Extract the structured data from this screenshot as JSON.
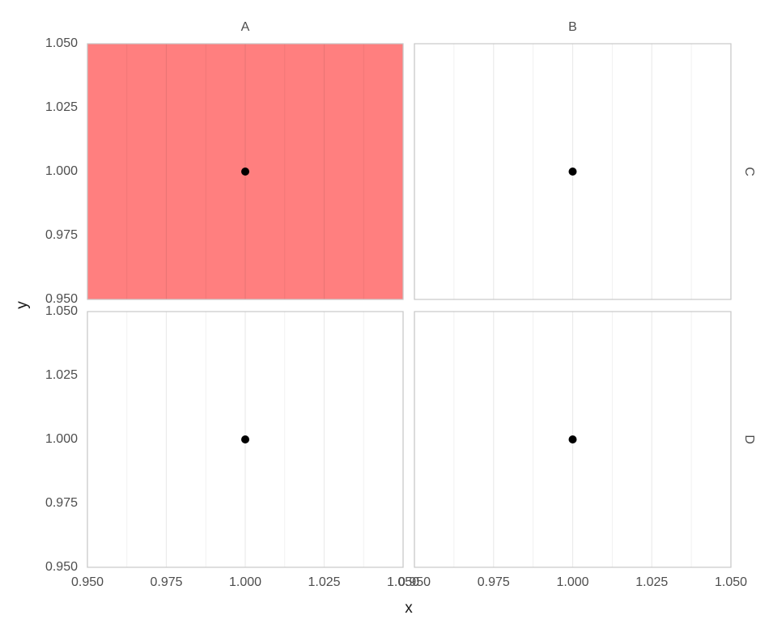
{
  "chart_data": {
    "type": "scatter",
    "x_label": "x",
    "y_label": "y",
    "facet_cols": [
      "A",
      "B"
    ],
    "facet_rows": [
      "C",
      "D"
    ],
    "xlim": [
      0.95,
      1.05
    ],
    "ylim": [
      0.95,
      1.05
    ],
    "xticks": [
      {
        "value": 0.95,
        "label": "0.950"
      },
      {
        "value": 0.975,
        "label": "0.975"
      },
      {
        "value": 1,
        "label": "1.000"
      },
      {
        "value": 1.025,
        "label": "1.025"
      },
      {
        "value": 1.05,
        "label": "1.050"
      }
    ],
    "yticks": [
      {
        "value": 0.95,
        "label": "0.950"
      },
      {
        "value": 0.975,
        "label": "0.975"
      },
      {
        "value": 1,
        "label": "1.000"
      },
      {
        "value": 1.025,
        "label": "1.025"
      },
      {
        "value": 1.05,
        "label": "1.050"
      }
    ],
    "x_minor_grid": [
      0.9625,
      0.9875,
      1.0125,
      1.0375
    ],
    "grid": "vertical",
    "point_color": "#000000",
    "panels": [
      {
        "x": [
          1
        ],
        "y": [
          1
        ],
        "fill": "#ff7f7f"
      },
      {
        "x": [
          1
        ],
        "y": [
          1
        ],
        "fill": "#ffffff"
      },
      {
        "x": [
          1
        ],
        "y": [
          1
        ],
        "fill": "#ffffff"
      },
      {
        "x": [
          1
        ],
        "y": [
          1
        ],
        "fill": "#ffffff"
      }
    ]
  }
}
